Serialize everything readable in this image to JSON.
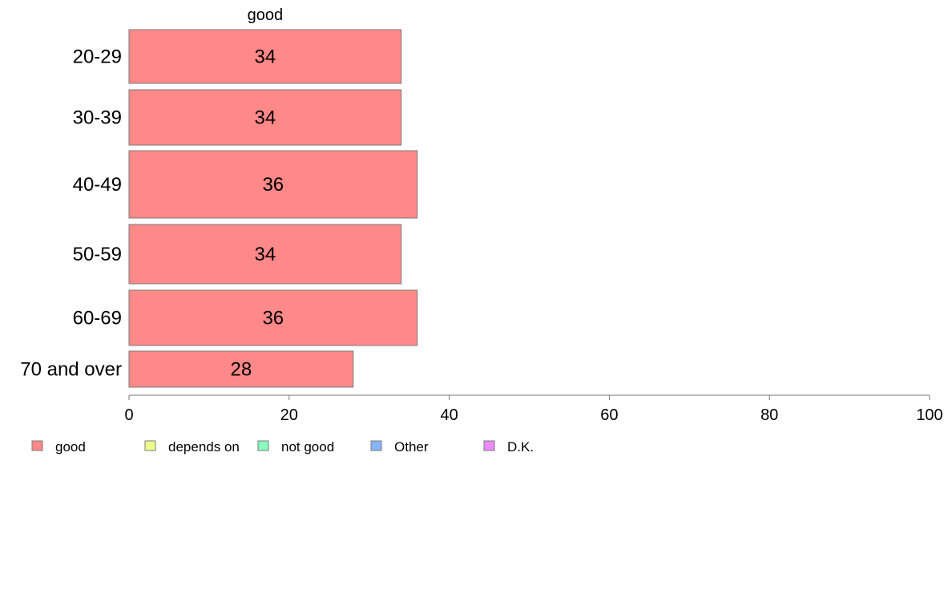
{
  "chart_data": {
    "type": "bar",
    "orientation": "horizontal",
    "stacked": true,
    "categories": [
      "20-29",
      "30-39",
      "40-49",
      "50-59",
      "60-69",
      "70 and over"
    ],
    "series": [
      {
        "name": "good",
        "color": "#ff8888",
        "values": [
          34,
          34,
          36,
          34,
          36,
          28
        ],
        "labels": [
          "34",
          "34",
          "36",
          "34",
          "36",
          "28"
        ]
      }
    ],
    "top_label": "good",
    "xlim": [
      0,
      100
    ],
    "xticks": [
      0,
      20,
      40,
      60,
      80,
      100
    ],
    "xtick_labels": [
      "0",
      "20",
      "40",
      "60",
      "80",
      "100"
    ],
    "grid": false,
    "legend": {
      "placement": "bottom-left",
      "items": [
        {
          "label": "good",
          "color": "#ff8888"
        },
        {
          "label": "depends on",
          "color": "#ecff88"
        },
        {
          "label": "not good",
          "color": "#88ffbb"
        },
        {
          "label": "Other",
          "color": "#88b4ff"
        },
        {
          "label": "D.K.",
          "color": "#ee88ff"
        }
      ]
    }
  }
}
